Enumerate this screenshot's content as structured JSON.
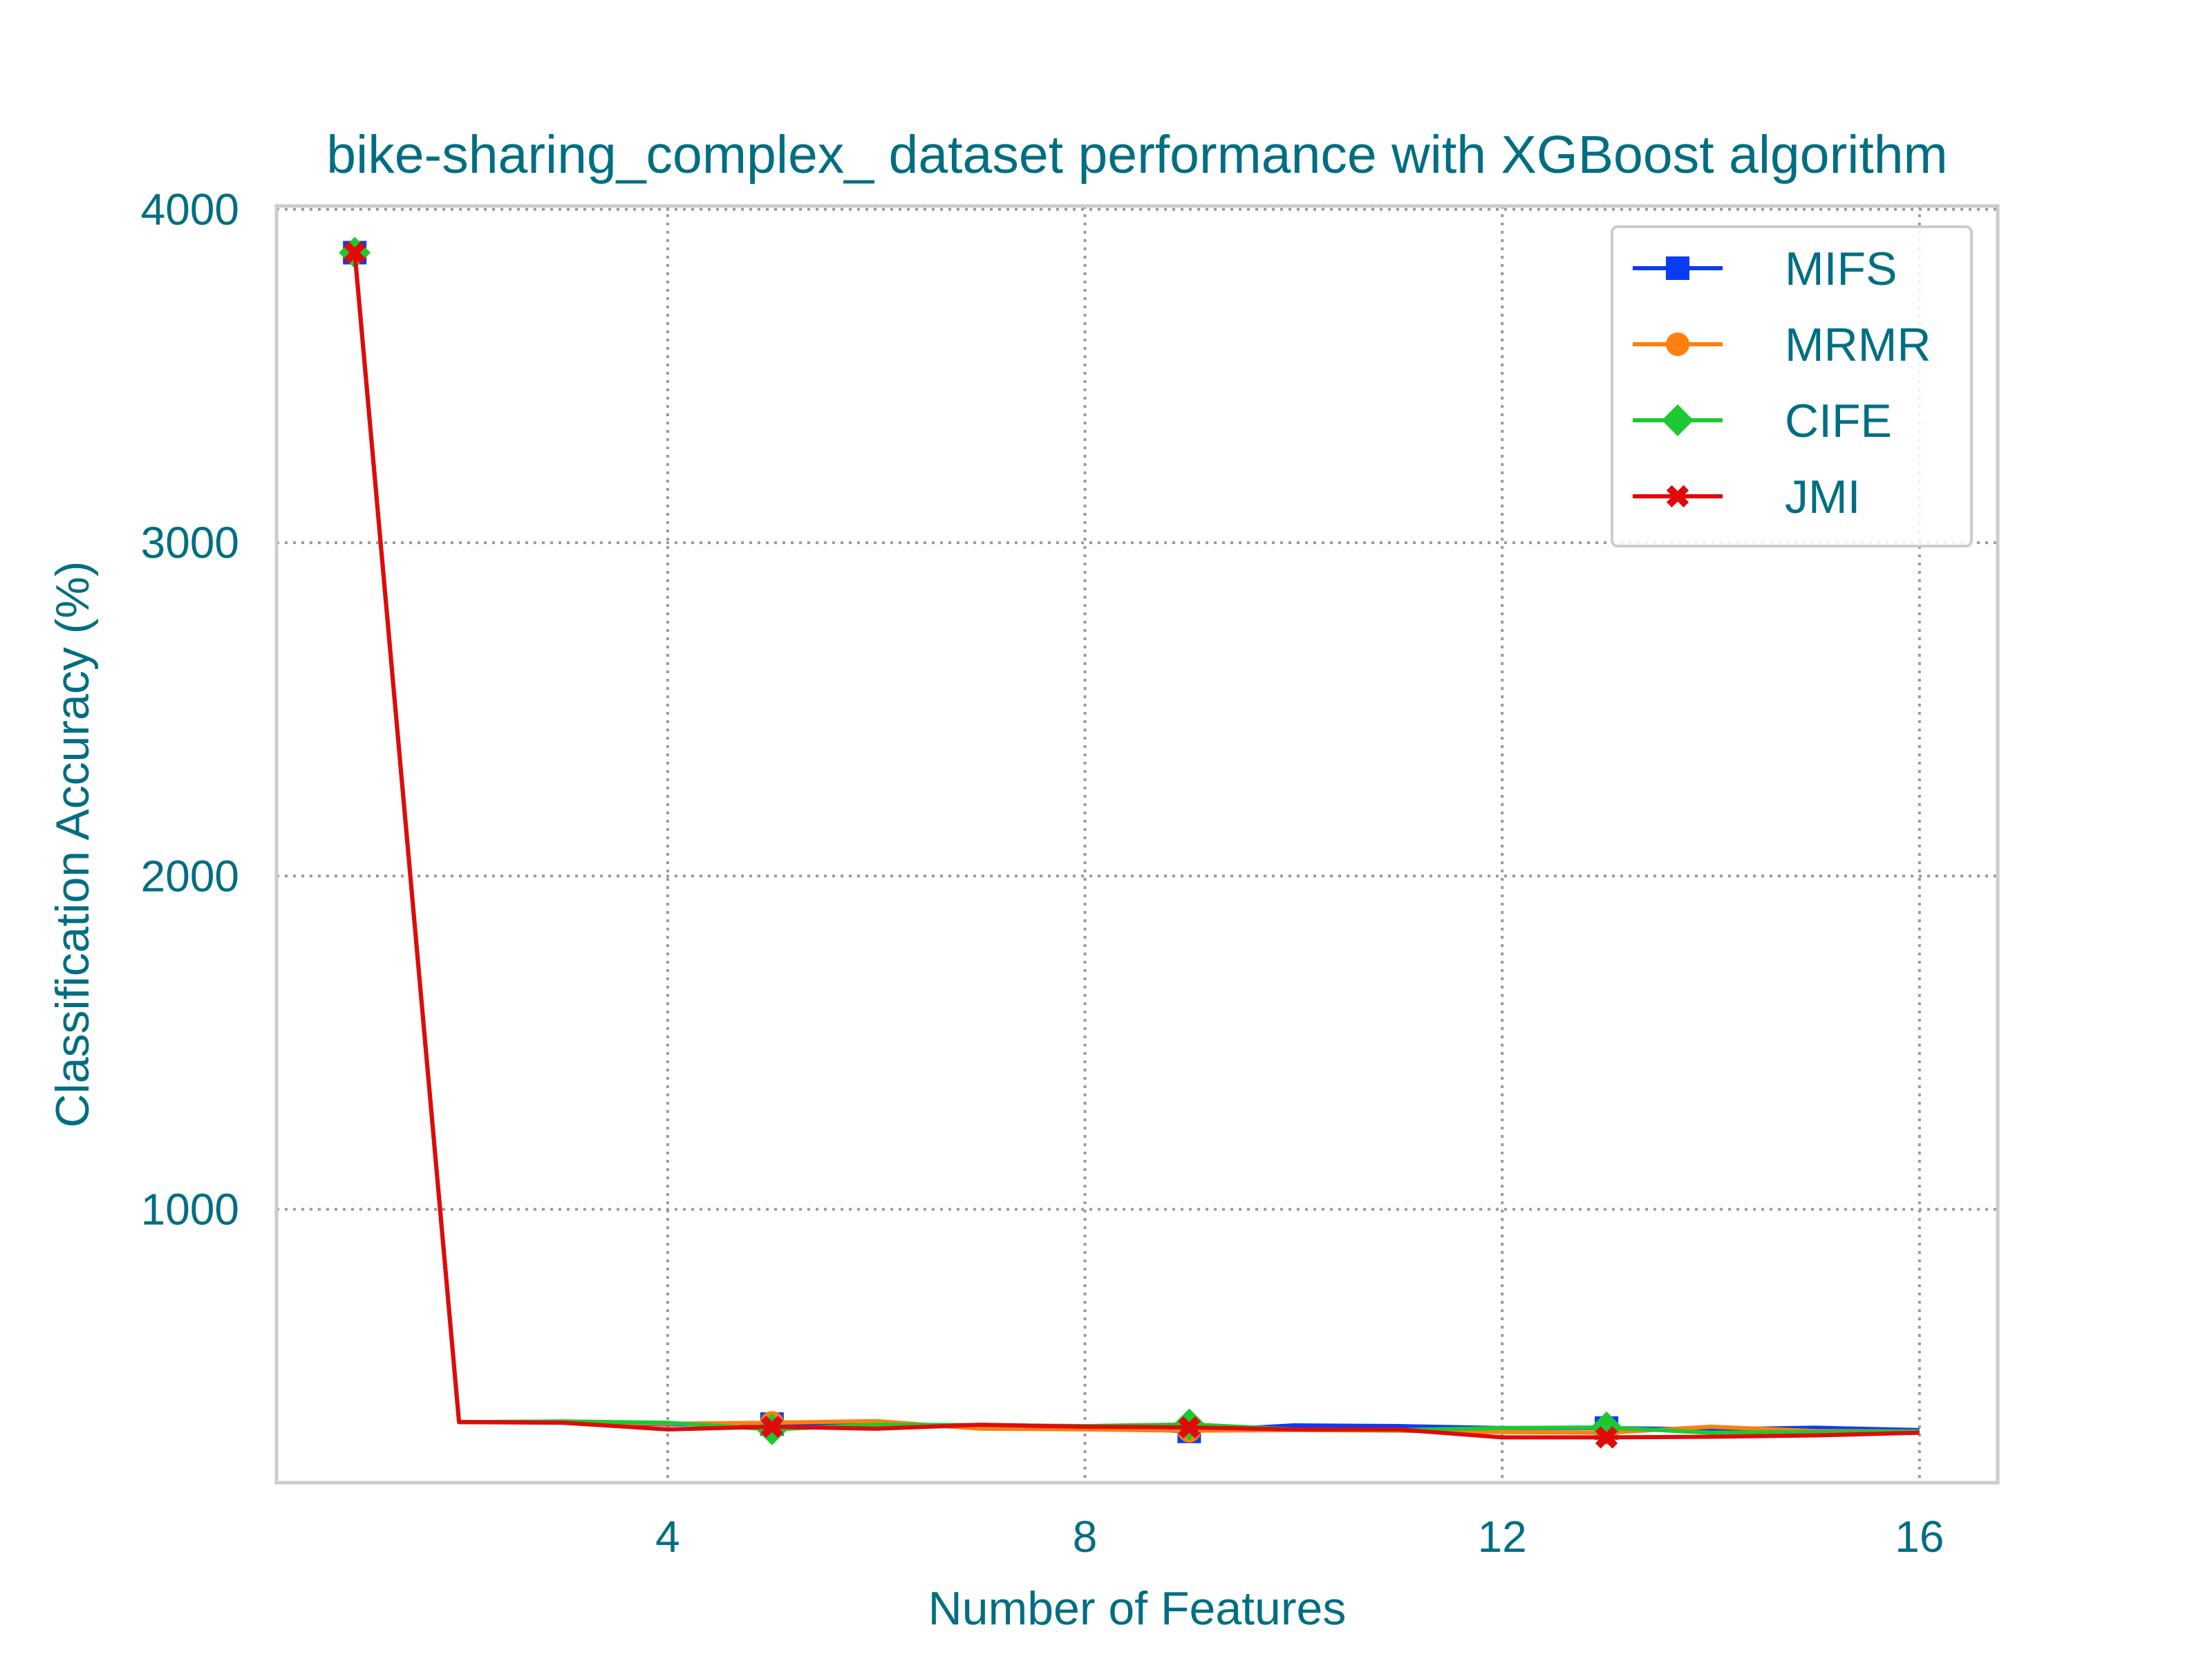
{
  "colors": {
    "text": "#006e82",
    "grid": "#999999",
    "frame": "#cccccc",
    "legend_border": "#cccccc"
  },
  "chart_data": {
    "type": "line",
    "title": "bike-sharing_complex_ dataset performance with XGBoost algorithm",
    "xlabel": "Number of Features",
    "ylabel": "Classification Accuracy (%)",
    "xlim": [
      0.25,
      16.75
    ],
    "ylim": [
      180,
      4010
    ],
    "xticks": [
      4,
      8,
      12,
      16
    ],
    "yticks": [
      1000,
      2000,
      3000,
      4000
    ],
    "grid": true,
    "legend_position": "top-right",
    "x": [
      1,
      2,
      3,
      4,
      5,
      6,
      7,
      8,
      9,
      10,
      11,
      12,
      13,
      14,
      15,
      16
    ],
    "series": [
      {
        "name": "MIFS",
        "color": "#0a3cf5",
        "marker": "square",
        "marker_every": [
          1,
          5,
          9,
          13
        ],
        "values": [
          3870,
          362,
          362,
          355,
          356,
          352,
          350,
          348,
          334,
          352,
          350,
          344,
          344,
          340,
          345,
          338
        ]
      },
      {
        "name": "MRMR",
        "color": "#ff7f0e",
        "marker": "circle",
        "marker_every": [
          1,
          5,
          9,
          13
        ],
        "values": [
          3870,
          362,
          362,
          357,
          360,
          365,
          342,
          340,
          336,
          338,
          336,
          332,
          330,
          348,
          335,
          334
        ]
      },
      {
        "name": "CIFE",
        "color": "#1ec832",
        "marker": "diamond",
        "marker_every": [
          1,
          5,
          9,
          13
        ],
        "values": [
          3870,
          362,
          364,
          360,
          340,
          354,
          353,
          350,
          355,
          340,
          338,
          344,
          346,
          330,
          332,
          334
        ]
      },
      {
        "name": "JMI",
        "color": "#e00a0a",
        "marker": "x",
        "marker_every": [
          1,
          5,
          9,
          13
        ],
        "values": [
          3870,
          362,
          360,
          340,
          348,
          342,
          354,
          348,
          346,
          340,
          340,
          316,
          316,
          318,
          322,
          330
        ]
      }
    ]
  }
}
